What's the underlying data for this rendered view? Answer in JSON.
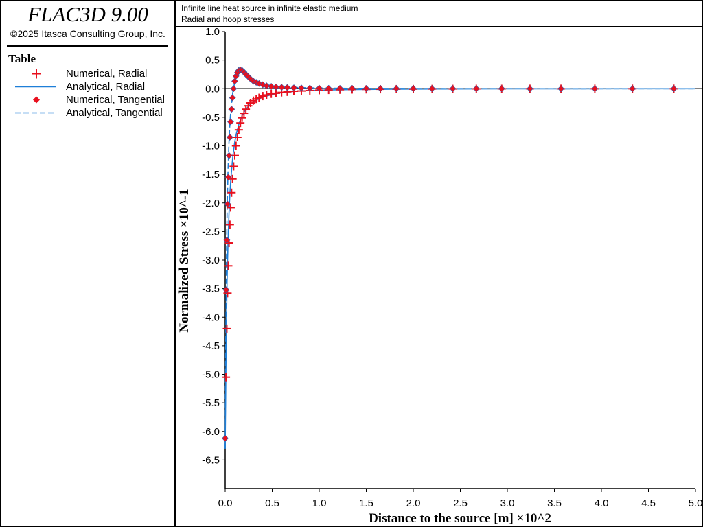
{
  "app": {
    "title": "FLAC3D 9.00",
    "copyright": "©2025 Itasca Consulting Group, Inc."
  },
  "legend": {
    "title": "Table",
    "items": [
      {
        "label": "Numerical, Radial",
        "symbol": "plus",
        "color": "#e8101e"
      },
      {
        "label": "Analytical, Radial",
        "symbol": "solid-line",
        "color": "#1e7fd8"
      },
      {
        "label": "Numerical, Tangential",
        "symbol": "diamond",
        "color": "#e8101e"
      },
      {
        "label": "Analytical, Tangential",
        "symbol": "dashed-line",
        "color": "#1e7fd8"
      }
    ]
  },
  "header": {
    "line1": "Infinite line heat source in infinite elastic medium",
    "line2": "Radial and hoop stresses"
  },
  "chart_data": {
    "type": "line",
    "xlabel": "Distance to the source [m]  ×10^2",
    "ylabel": "Normalized Stress  ×10^-1",
    "xlim": [
      0,
      5.0
    ],
    "ylim": [
      -7.0,
      1.0
    ],
    "xticks": [
      "0.0",
      "0.5",
      "1.0",
      "1.5",
      "2.0",
      "2.5",
      "3.0",
      "3.5",
      "4.0",
      "4.5",
      "5.0"
    ],
    "yticks": [
      "1.0",
      "0.5",
      "0.0",
      "-0.5",
      "-1.0",
      "-1.5",
      "-2.0",
      "-2.5",
      "-3.0",
      "-3.5",
      "-4.0",
      "-4.5",
      "-5.0",
      "-5.5",
      "-6.0",
      "-6.5"
    ],
    "grid": false,
    "series": [
      {
        "name": "Numerical, Radial",
        "x": [
          0.008,
          0.018,
          0.025,
          0.033,
          0.041,
          0.05,
          0.058,
          0.068,
          0.078,
          0.09,
          0.102,
          0.115,
          0.13,
          0.145,
          0.162,
          0.18,
          0.2,
          0.22,
          0.245,
          0.27,
          0.3,
          0.33,
          0.36,
          0.4,
          0.44,
          0.49,
          0.54,
          0.6,
          0.66,
          0.73,
          0.81,
          0.9,
          1.0,
          1.1,
          1.22,
          1.35,
          1.5,
          1.65,
          1.82,
          2.0,
          2.2,
          2.42,
          2.67,
          2.94,
          3.24,
          3.57,
          3.93,
          4.33,
          4.77
        ],
        "y": [
          -5.05,
          -4.2,
          -3.58,
          -3.1,
          -2.7,
          -2.38,
          -2.08,
          -1.82,
          -1.58,
          -1.36,
          -1.17,
          -1.0,
          -0.85,
          -0.72,
          -0.6,
          -0.51,
          -0.43,
          -0.36,
          -0.3,
          -0.25,
          -0.21,
          -0.18,
          -0.16,
          -0.13,
          -0.11,
          -0.09,
          -0.08,
          -0.065,
          -0.055,
          -0.045,
          -0.04,
          -0.032,
          -0.026,
          -0.022,
          -0.018,
          -0.014,
          -0.012,
          -0.01,
          -0.008,
          -0.007,
          -0.005,
          -0.004,
          -0.003,
          -0.003,
          -0.002,
          -0.002,
          -0.001,
          -0.001,
          -0.001
        ]
      },
      {
        "name": "Analytical, Radial",
        "x": [
          0.0,
          0.005,
          0.01,
          0.015,
          0.02,
          0.03,
          0.04,
          0.05,
          0.06,
          0.08,
          0.1,
          0.12,
          0.15,
          0.18,
          0.22,
          0.27,
          0.33,
          0.4,
          0.5,
          0.6,
          0.75,
          0.9,
          1.1,
          1.4,
          1.8,
          2.3,
          3.0,
          3.8,
          4.77,
          5.0
        ],
        "y": [
          -6.3,
          -5.4,
          -4.5,
          -3.9,
          -3.4,
          -2.7,
          -2.2,
          -1.85,
          -1.58,
          -1.2,
          -0.95,
          -0.78,
          -0.6,
          -0.47,
          -0.36,
          -0.27,
          -0.2,
          -0.15,
          -0.1,
          -0.07,
          -0.045,
          -0.032,
          -0.022,
          -0.014,
          -0.008,
          -0.005,
          -0.003,
          -0.002,
          -0.001,
          -0.001
        ]
      },
      {
        "name": "Numerical, Tangential",
        "x": [
          0.0,
          0.01,
          0.018,
          0.025,
          0.033,
          0.041,
          0.05,
          0.058,
          0.068,
          0.078,
          0.09,
          0.102,
          0.115,
          0.13,
          0.145,
          0.162,
          0.18,
          0.2,
          0.22,
          0.245,
          0.27,
          0.3,
          0.33,
          0.36,
          0.4,
          0.44,
          0.49,
          0.54,
          0.6,
          0.66,
          0.73,
          0.81,
          0.9,
          1.0,
          1.1,
          1.22,
          1.35,
          1.5,
          1.65,
          1.82,
          2.0,
          2.2,
          2.42,
          2.67,
          2.94,
          3.24,
          3.57,
          3.93,
          4.33,
          4.77
        ],
        "y": [
          -6.12,
          -3.52,
          -2.65,
          -2.02,
          -1.55,
          -1.17,
          -0.85,
          -0.58,
          -0.36,
          -0.16,
          0.0,
          0.13,
          0.22,
          0.28,
          0.32,
          0.33,
          0.32,
          0.29,
          0.25,
          0.21,
          0.17,
          0.13,
          0.11,
          0.09,
          0.07,
          0.05,
          0.04,
          0.03,
          0.025,
          0.02,
          0.015,
          0.012,
          0.01,
          0.008,
          0.006,
          0.005,
          0.004,
          0.003,
          0.003,
          0.002,
          0.002,
          0.001,
          0.001,
          0.001,
          0.001,
          0.0,
          0.0,
          0.0,
          0.0,
          0.0
        ]
      },
      {
        "name": "Analytical, Tangential",
        "x": [
          0.0,
          0.005,
          0.01,
          0.02,
          0.03,
          0.04,
          0.05,
          0.06,
          0.08,
          0.1,
          0.12,
          0.14,
          0.16,
          0.18,
          0.2,
          0.23,
          0.27,
          0.32,
          0.38,
          0.45,
          0.55,
          0.65,
          0.8,
          1.0,
          1.3,
          1.7,
          2.2,
          3.0,
          3.8,
          4.77,
          5.0
        ],
        "y": [
          -6.3,
          -4.6,
          -3.5,
          -2.2,
          -1.45,
          -0.95,
          -0.62,
          -0.38,
          -0.07,
          0.1,
          0.21,
          0.28,
          0.31,
          0.32,
          0.31,
          0.27,
          0.21,
          0.15,
          0.1,
          0.065,
          0.04,
          0.028,
          0.018,
          0.011,
          0.006,
          0.004,
          0.002,
          0.001,
          0.0,
          0.0,
          0.0
        ]
      }
    ]
  }
}
